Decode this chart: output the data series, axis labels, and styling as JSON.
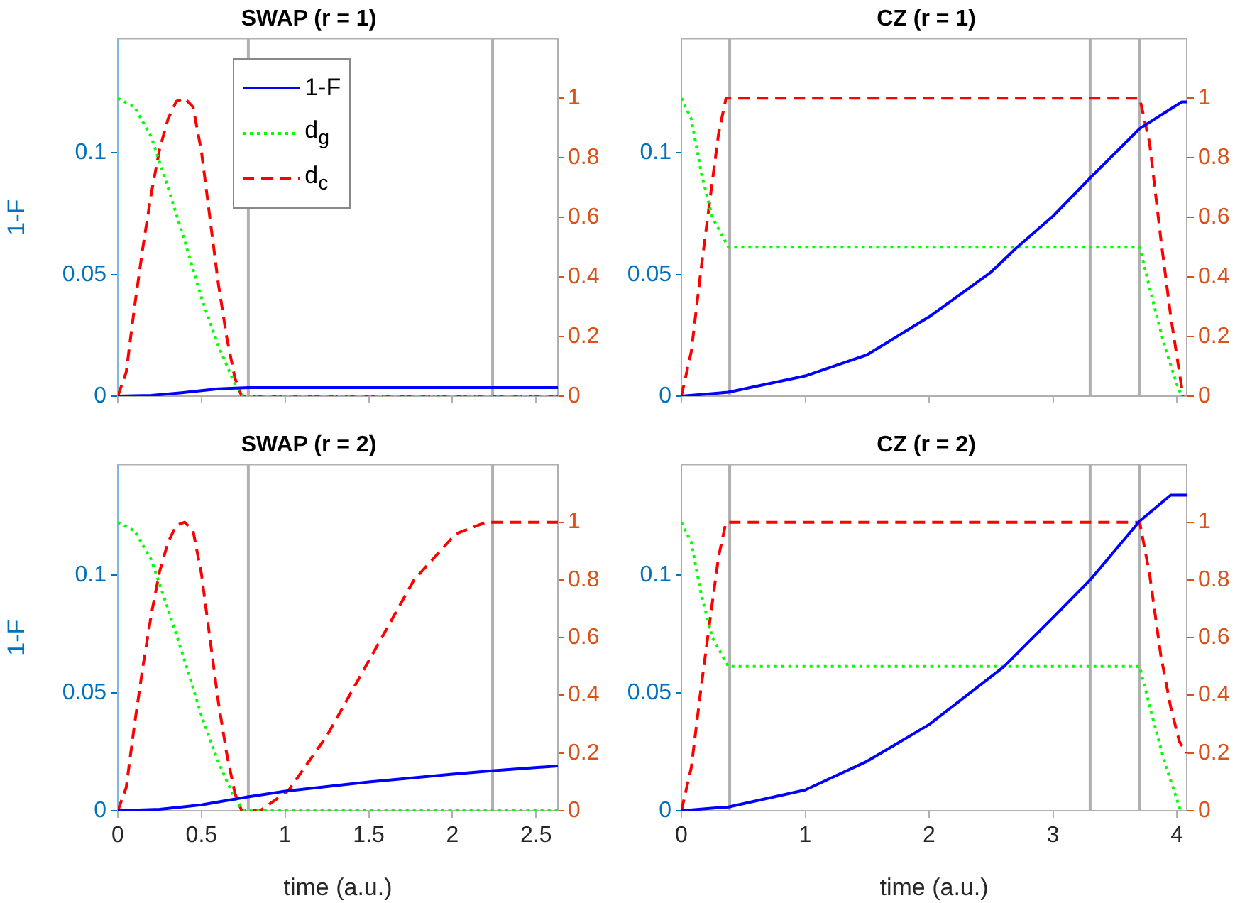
{
  "chart_data": [
    {
      "type": "line",
      "title": "SWAP (r = 1)",
      "ylabel": "1-F",
      "xlim": [
        0,
        2.63
      ],
      "xticks": [
        {
          "value": 0,
          "label": null
        },
        {
          "value": 0.5,
          "label": null
        },
        {
          "value": 1,
          "label": null
        },
        {
          "value": 1.5,
          "label": null
        },
        {
          "value": 2,
          "label": null
        },
        {
          "value": 2.5,
          "label": null
        }
      ],
      "ylim": [
        0,
        0.147
      ],
      "yticks": [
        0,
        0.05,
        0.1
      ],
      "y2lim": [
        0,
        1.2
      ],
      "y2ticks": [
        0,
        0.2,
        0.4,
        0.6,
        0.8,
        1
      ],
      "tick_labels": "y",
      "marker": "none",
      "legend": "top",
      "ref_lines": [
        {
          "axis": "x",
          "value": 0.78,
          "color": "#b0b0b0"
        },
        {
          "axis": "x",
          "value": 2.24,
          "color": "#b0b0b0"
        }
      ],
      "series": [
        {
          "name": "1-F",
          "color": "#0000ff",
          "line_style": "solid",
          "x": [
            0,
            0.2,
            0.4,
            0.6,
            0.78,
            2.63
          ],
          "values": [
            0,
            0.0003,
            0.0015,
            0.003,
            0.0035,
            0.0035
          ]
        },
        {
          "name": "d$_{g}$",
          "color": "#00ff00",
          "line_style": "dotted",
          "axis": "y2",
          "x": [
            0,
            0.1,
            0.2,
            0.3,
            0.4,
            0.5,
            0.6,
            0.7,
            0.75,
            2.63
          ],
          "values": [
            1,
            0.97,
            0.87,
            0.7,
            0.52,
            0.33,
            0.17,
            0.04,
            0,
            0
          ]
        },
        {
          "name": "d$_{c}$",
          "color": "#ff0000",
          "line_style": "dashed",
          "axis": "y2",
          "x": [
            0,
            0.05,
            0.1,
            0.15,
            0.2,
            0.25,
            0.3,
            0.35,
            0.4,
            0.45,
            0.5,
            0.55,
            0.6,
            0.65,
            0.7,
            0.74,
            2.63
          ],
          "values": [
            0,
            0.08,
            0.3,
            0.5,
            0.68,
            0.83,
            0.93,
            0.99,
            1,
            0.97,
            0.82,
            0.6,
            0.38,
            0.2,
            0.06,
            0,
            0
          ]
        }
      ]
    },
    {
      "type": "line",
      "title": "CZ (r = 1)",
      "xlim": [
        0,
        4.08
      ],
      "xticks": [
        {
          "value": 0,
          "label": null
        },
        {
          "value": 1,
          "label": null
        },
        {
          "value": 2,
          "label": null
        },
        {
          "value": 3,
          "label": null
        },
        {
          "value": 4,
          "label": null
        }
      ],
      "ylim": [
        0,
        1.2
      ],
      "yticks": [
        0,
        0.2,
        0.4,
        0.6,
        0.8,
        1
      ],
      "y2lim": [
        0,
        0.147
      ],
      "y2ticks": [
        0,
        0.05,
        0.1
      ],
      "tick_labels": "y",
      "marker": "none",
      "ref_lines": [
        {
          "axis": "x",
          "value": 0.39,
          "color": "#b0b0b0"
        },
        {
          "axis": "x",
          "value": 3.3,
          "color": "#b0b0b0"
        },
        {
          "axis": "x",
          "value": 3.7,
          "color": "#b0b0b0"
        }
      ],
      "series": [
        {
          "color": "#0000ff",
          "line_style": "solid",
          "axis": "y2",
          "x": [
            0,
            0.38,
            1,
            1.5,
            2,
            2.5,
            2.7,
            3,
            3.3,
            3.7,
            4.04,
            4.08
          ],
          "values": [
            0,
            0.0016,
            0.0083,
            0.017,
            0.0326,
            0.051,
            0.0607,
            0.074,
            0.0897,
            0.11,
            0.121,
            0.121
          ]
        },
        {
          "color": "#00ff00",
          "line_style": "dotted",
          "x": [
            0,
            0.08,
            0.16,
            0.25,
            0.38,
            3.7,
            3.8,
            3.9,
            4,
            4.04
          ],
          "values": [
            1,
            0.93,
            0.75,
            0.6,
            0.5,
            0.5,
            0.33,
            0.17,
            0.04,
            0
          ]
        },
        {
          "color": "#ff0000",
          "line_style": "dashed",
          "x": [
            0,
            0.08,
            0.16,
            0.24,
            0.3,
            0.36,
            3.7,
            3.78,
            3.87,
            3.95,
            4.05
          ],
          "values": [
            0,
            0.15,
            0.43,
            0.69,
            0.88,
            1,
            1,
            0.85,
            0.53,
            0.27,
            0
          ]
        }
      ]
    },
    {
      "type": "line",
      "title": "SWAP (r = 2)",
      "xlabel": "time (a.u.)",
      "ylabel": "1-F",
      "xlim": [
        0,
        2.63
      ],
      "xticks": [
        0,
        0.5,
        1,
        1.5,
        2,
        2.5
      ],
      "ylim": [
        0,
        0.147
      ],
      "yticks": [
        0,
        0.05,
        0.1
      ],
      "y2lim": [
        0,
        1.2
      ],
      "y2ticks": [
        0,
        0.2,
        0.4,
        0.6,
        0.8,
        1
      ],
      "marker": "none",
      "ref_lines": [
        {
          "axis": "x",
          "value": 0.78,
          "color": "#b0b0b0"
        },
        {
          "axis": "x",
          "value": 2.24,
          "color": "#b0b0b0"
        }
      ],
      "series": [
        {
          "color": "#0000ff",
          "line_style": "solid",
          "x": [
            0,
            0.25,
            0.5,
            0.77,
            1,
            1.5,
            2,
            2.25,
            2.63
          ],
          "values": [
            0,
            0.0006,
            0.0025,
            0.0058,
            0.0083,
            0.0122,
            0.0155,
            0.017,
            0.019
          ]
        },
        {
          "color": "#00ff00",
          "line_style": "dotted",
          "axis": "y2",
          "x": [
            0,
            0.1,
            0.2,
            0.3,
            0.4,
            0.5,
            0.6,
            0.7,
            0.75,
            2.63
          ],
          "values": [
            1,
            0.97,
            0.87,
            0.7,
            0.52,
            0.33,
            0.17,
            0.04,
            0,
            0
          ]
        },
        {
          "color": "#ff0000",
          "line_style": "dashed",
          "axis": "y2",
          "x": [
            0,
            0.05,
            0.1,
            0.15,
            0.2,
            0.25,
            0.3,
            0.35,
            0.4,
            0.45,
            0.5,
            0.55,
            0.6,
            0.65,
            0.7,
            0.74,
            0.85,
            1.02,
            1.25,
            1.51,
            1.77,
            2.02,
            2.2,
            2.63
          ],
          "values": [
            0,
            0.08,
            0.3,
            0.5,
            0.68,
            0.83,
            0.93,
            0.99,
            1,
            0.97,
            0.82,
            0.6,
            0.38,
            0.2,
            0.06,
            0,
            0,
            0.07,
            0.26,
            0.53,
            0.8,
            0.96,
            1,
            1
          ]
        }
      ]
    },
    {
      "type": "line",
      "title": "CZ (r = 2)",
      "xlabel": "time (a.u.)",
      "xlim": [
        0,
        4.08
      ],
      "xticks": [
        0,
        1,
        2,
        3,
        4
      ],
      "ylim": [
        0,
        1.2
      ],
      "yticks": [
        0,
        0.2,
        0.4,
        0.6,
        0.8,
        1
      ],
      "y2lim": [
        0,
        0.147
      ],
      "y2ticks": [
        0,
        0.05,
        0.1
      ],
      "marker": "none",
      "ref_lines": [
        {
          "axis": "x",
          "value": 0.39,
          "color": "#b0b0b0"
        },
        {
          "axis": "x",
          "value": 3.3,
          "color": "#b0b0b0"
        },
        {
          "axis": "x",
          "value": 3.7,
          "color": "#b0b0b0"
        }
      ],
      "series": [
        {
          "color": "#0000ff",
          "line_style": "solid",
          "axis": "y2",
          "x": [
            0,
            0.38,
            1,
            1.5,
            2,
            2.6,
            3,
            3.3,
            3.7,
            3.95,
            4.08
          ],
          "values": [
            0,
            0.0016,
            0.0088,
            0.021,
            0.0366,
            0.061,
            0.082,
            0.098,
            0.123,
            0.134,
            0.134
          ]
        },
        {
          "color": "#00ff00",
          "line_style": "dotted",
          "x": [
            0,
            0.08,
            0.16,
            0.25,
            0.38,
            3.7,
            3.8,
            3.9,
            4,
            4.03
          ],
          "values": [
            1,
            0.93,
            0.75,
            0.6,
            0.5,
            0.5,
            0.33,
            0.17,
            0.04,
            0
          ]
        },
        {
          "color": "#ff0000",
          "line_style": "dashed",
          "x": [
            0,
            0.08,
            0.16,
            0.24,
            0.3,
            0.36,
            3.7,
            3.78,
            3.87,
            3.95,
            4.02,
            4.08
          ],
          "values": [
            0,
            0.15,
            0.43,
            0.69,
            0.88,
            1,
            1,
            0.82,
            0.54,
            0.36,
            0.24,
            0.2
          ]
        }
      ]
    }
  ]
}
